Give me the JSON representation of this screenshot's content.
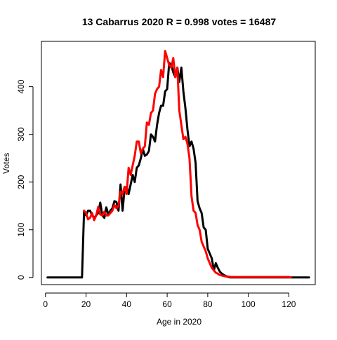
{
  "chart_data": {
    "type": "line",
    "title": "13 Cabarrus 2020 R = 0.998 votes = 16487",
    "xlabel": "Age in 2020",
    "ylabel": "Votes",
    "xlim": [
      -2,
      133
    ],
    "ylim": [
      -15,
      495
    ],
    "x_ticks": [
      0,
      20,
      40,
      60,
      80,
      100,
      120
    ],
    "y_ticks": [
      0,
      100,
      200,
      300,
      400
    ],
    "grid": false,
    "legend": "none",
    "series": [
      {
        "color": "#000000",
        "x": [
          1,
          2,
          3,
          4,
          5,
          6,
          7,
          8,
          9,
          10,
          11,
          12,
          13,
          14,
          15,
          16,
          17,
          18,
          19,
          20,
          21,
          22,
          23,
          24,
          25,
          26,
          27,
          28,
          29,
          30,
          31,
          32,
          33,
          34,
          35,
          36,
          37,
          38,
          39,
          40,
          41,
          42,
          43,
          44,
          45,
          46,
          47,
          48,
          49,
          50,
          51,
          52,
          53,
          54,
          55,
          56,
          57,
          58,
          59,
          60,
          61,
          62,
          63,
          64,
          65,
          66,
          67,
          68,
          69,
          70,
          71,
          72,
          73,
          74,
          75,
          76,
          77,
          78,
          79,
          80,
          81,
          82,
          83,
          84,
          85,
          86,
          87,
          88,
          89,
          90,
          91,
          92,
          93,
          94,
          95,
          96,
          97,
          98,
          99,
          100,
          101,
          102,
          103,
          104,
          105,
          106,
          107,
          108,
          109,
          110,
          111,
          112,
          113,
          114,
          115,
          116,
          117,
          118,
          119,
          120,
          121,
          122,
          123,
          124,
          125,
          126,
          127,
          128,
          129,
          130
        ],
        "values": [
          0,
          0,
          0,
          0,
          0,
          0,
          0,
          0,
          0,
          0,
          0,
          0,
          0,
          0,
          0,
          0,
          0,
          0,
          138,
          130,
          140,
          140,
          130,
          125,
          130,
          135,
          157,
          130,
          125,
          147,
          132,
          140,
          145,
          160,
          158,
          140,
          195,
          140,
          185,
          190,
          175,
          195,
          215,
          200,
          230,
          235,
          250,
          270,
          255,
          258,
          265,
          300,
          295,
          285,
          320,
          345,
          360,
          360,
          390,
          395,
          450,
          445,
          430,
          420,
          440,
          410,
          440,
          390,
          355,
          310,
          275,
          285,
          270,
          240,
          160,
          145,
          135,
          105,
          100,
          60,
          50,
          40,
          15,
          30,
          20,
          12,
          8,
          5,
          3,
          1,
          0,
          0,
          0,
          0,
          0,
          0,
          0,
          0,
          0,
          0,
          0,
          0,
          0,
          0,
          0,
          0,
          0,
          0,
          0,
          0,
          0,
          0,
          0,
          0,
          0,
          0,
          0,
          0,
          0,
          0,
          0,
          0,
          0,
          0,
          0,
          0,
          0,
          0,
          0,
          0
        ]
      },
      {
        "color": "#ff0000",
        "x": [
          19,
          20,
          21,
          22,
          23,
          24,
          25,
          26,
          27,
          28,
          29,
          30,
          31,
          32,
          33,
          34,
          35,
          36,
          37,
          38,
          39,
          40,
          41,
          42,
          43,
          44,
          45,
          46,
          47,
          48,
          49,
          50,
          51,
          52,
          53,
          54,
          55,
          56,
          57,
          58,
          59,
          60,
          61,
          62,
          63,
          64,
          65,
          66,
          67,
          68,
          69,
          70,
          71,
          72,
          73,
          74,
          75,
          76,
          77,
          78,
          79,
          80,
          81,
          82,
          83,
          84,
          85,
          86,
          87,
          88,
          89,
          90,
          91,
          92,
          93,
          94,
          95,
          96,
          97,
          98,
          99,
          100,
          101,
          102,
          103,
          104,
          105,
          106,
          107,
          108,
          109,
          110,
          111,
          112,
          113,
          114,
          115,
          116,
          117,
          118,
          119,
          120,
          121
        ],
        "values": [
          140,
          135,
          122,
          125,
          135,
          120,
          130,
          148,
          132,
          130,
          138,
          130,
          130,
          135,
          140,
          152,
          145,
          150,
          180,
          175,
          190,
          175,
          230,
          215,
          235,
          255,
          285,
          285,
          260,
          270,
          275,
          325,
          320,
          345,
          350,
          385,
          395,
          400,
          435,
          420,
          475,
          460,
          445,
          440,
          460,
          420,
          440,
          350,
          320,
          290,
          295,
          280,
          250,
          170,
          140,
          135,
          110,
          100,
          75,
          65,
          55,
          40,
          30,
          20,
          15,
          10,
          8,
          5,
          4,
          3,
          2,
          2,
          1,
          1,
          1,
          1,
          1,
          1,
          1,
          1,
          1,
          1,
          1,
          1,
          1,
          1,
          1,
          1,
          1,
          1,
          1,
          1,
          1,
          1,
          1,
          1,
          1,
          1,
          1,
          1,
          1,
          1,
          0
        ]
      }
    ]
  }
}
